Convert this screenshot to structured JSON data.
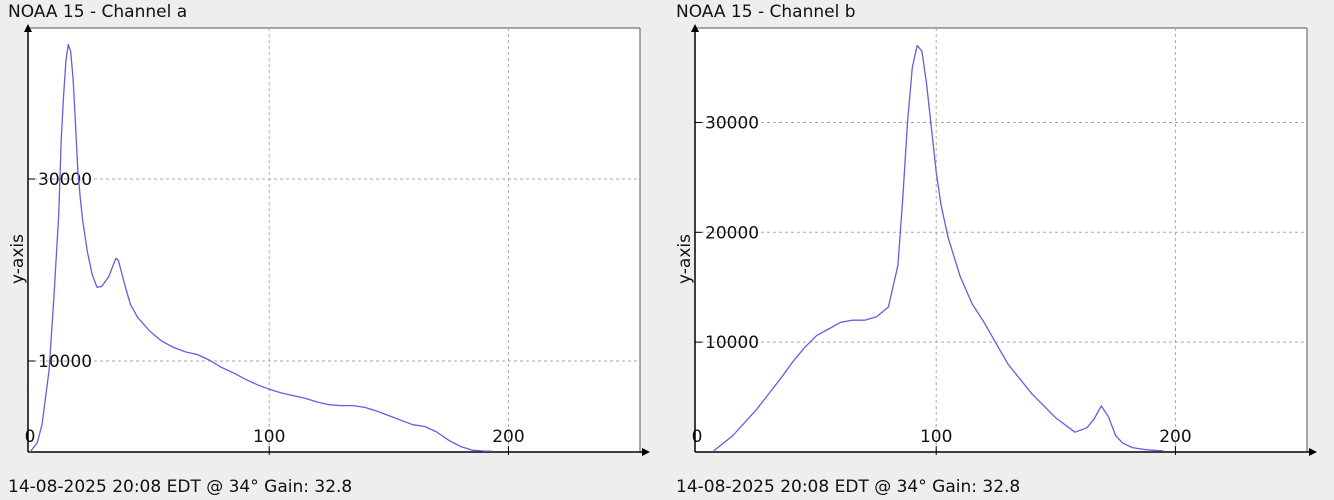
{
  "chart_data": [
    {
      "type": "line",
      "title": "NOAA 15 - Channel a",
      "footer": "14-08-2025 20:08 EDT @ 34° Gain: 32.8",
      "xlabel": "",
      "ylabel": "y-axis",
      "xlim": [
        0,
        255
      ],
      "ylim": [
        0,
        46600
      ],
      "x_ticks": [
        0,
        100,
        200
      ],
      "y_ticks": [
        10000,
        30000
      ],
      "grid": true,
      "color": "#6060e0",
      "series": [
        {
          "x": [
            0,
            3,
            5,
            8,
            10,
            12,
            13,
            14,
            15,
            16,
            17,
            18,
            19,
            20,
            21,
            22,
            24,
            26,
            28,
            30,
            33,
            35,
            36,
            37,
            38,
            40,
            42,
            45,
            50,
            55,
            60,
            65,
            70,
            75,
            80,
            85,
            90,
            95,
            100,
            105,
            110,
            115,
            120,
            125,
            130,
            135,
            140,
            145,
            150,
            155,
            160,
            165,
            170,
            175,
            180,
            185,
            190,
            193
          ],
          "values": [
            0,
            1000,
            3000,
            9000,
            17000,
            26000,
            34000,
            39000,
            43000,
            44800,
            44000,
            41000,
            36000,
            31000,
            28000,
            25500,
            22000,
            19500,
            18100,
            18200,
            19300,
            20700,
            21300,
            21000,
            20000,
            18000,
            16200,
            14800,
            13300,
            12200,
            11500,
            11000,
            10700,
            10100,
            9300,
            8700,
            8000,
            7400,
            6900,
            6500,
            6200,
            5900,
            5500,
            5200,
            5100,
            5100,
            4900,
            4500,
            4000,
            3500,
            3000,
            2800,
            2200,
            1300,
            600,
            200,
            100,
            100
          ]
        }
      ]
    },
    {
      "type": "line",
      "title": "NOAA 15 - Channel b",
      "footer": "14-08-2025 20:08 EDT @ 34° Gain: 32.8",
      "xlabel": "",
      "ylabel": "y-axis",
      "xlim": [
        0,
        255
      ],
      "ylim": [
        0,
        38600
      ],
      "x_ticks": [
        0,
        100,
        200
      ],
      "y_ticks": [
        10000,
        20000,
        30000
      ],
      "grid": true,
      "color": "#6060e0",
      "series": [
        {
          "x": [
            7,
            15,
            25,
            35,
            40,
            45,
            50,
            55,
            60,
            65,
            70,
            75,
            80,
            84,
            86,
            88,
            90,
            92,
            94,
            96,
            98,
            100,
            102,
            105,
            110,
            115,
            120,
            125,
            130,
            140,
            150,
            158,
            163,
            166,
            169,
            172,
            175,
            178,
            182,
            188,
            195
          ],
          "values": [
            100,
            1500,
            3900,
            6700,
            8200,
            9500,
            10600,
            11200,
            11800,
            12000,
            12000,
            12300,
            13200,
            17000,
            23000,
            30000,
            35000,
            37000,
            36500,
            33500,
            29500,
            25500,
            22500,
            19500,
            16000,
            13500,
            11800,
            9900,
            8000,
            5300,
            3100,
            1800,
            2200,
            3000,
            4200,
            3200,
            1500,
            800,
            400,
            200,
            100
          ]
        }
      ]
    }
  ]
}
